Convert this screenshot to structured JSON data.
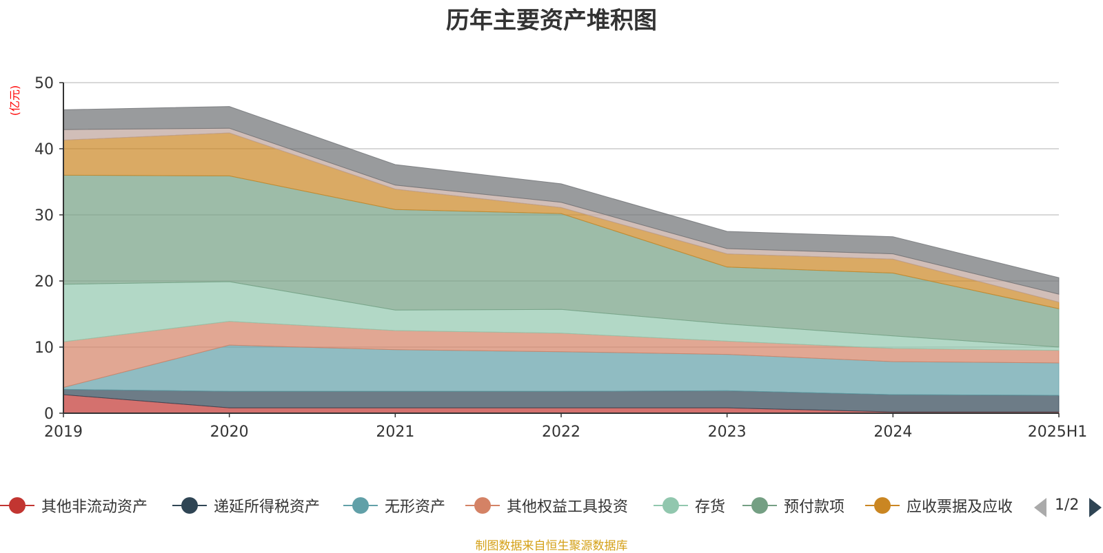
{
  "chart_data": {
    "type": "area",
    "stacked": true,
    "title": "历年主要资产堆积图",
    "ylabel": "(亿元)",
    "xlabel": "",
    "categories": [
      "2019",
      "2020",
      "2021",
      "2022",
      "2023",
      "2024",
      "2025H1"
    ],
    "ylim": [
      0,
      50
    ],
    "yticks": [
      "0",
      "10",
      "20",
      "30",
      "40",
      "50"
    ],
    "grid": true,
    "legend_position": "bottom",
    "series": [
      {
        "name": "其他非流动资产",
        "color": "#c23531",
        "values": [
          2.8,
          0.8,
          0.8,
          0.8,
          0.8,
          0.2,
          0.2
        ]
      },
      {
        "name": "递延所得税资产",
        "color": "#2f4554",
        "values": [
          0.8,
          2.5,
          2.5,
          2.5,
          2.6,
          2.6,
          2.5
        ]
      },
      {
        "name": "无形资产",
        "color": "#61a0a8",
        "values": [
          0.3,
          7.0,
          6.3,
          6.0,
          5.5,
          5.0,
          4.9
        ]
      },
      {
        "name": "其他权益工具投资",
        "color": "#d48265",
        "values": [
          6.9,
          3.6,
          2.9,
          2.8,
          2.0,
          2.0,
          1.9
        ]
      },
      {
        "name": "存货",
        "color": "#91c7ae",
        "values": [
          8.7,
          6.0,
          3.1,
          3.6,
          2.6,
          1.9,
          0.5
        ]
      },
      {
        "name": "预付款项",
        "color": "#749f83",
        "values": [
          16.5,
          16.0,
          15.2,
          14.5,
          8.6,
          9.5,
          5.8
        ]
      },
      {
        "name": "应收票据及应收",
        "color": "#ca8622",
        "values": [
          5.3,
          6.5,
          3.1,
          0.9,
          2.0,
          2.1,
          1.0
        ]
      },
      {
        "name": "",
        "color": "#bda29a",
        "values": [
          1.6,
          0.7,
          0.6,
          0.8,
          0.8,
          0.8,
          1.2
        ]
      },
      {
        "name": "",
        "color": "#6e7074",
        "values": [
          3.0,
          3.3,
          3.1,
          2.8,
          2.6,
          2.6,
          2.5
        ]
      }
    ]
  },
  "legend": {
    "page_indicator": "1/2"
  },
  "source_note": "制图数据来自恒生聚源数据库"
}
